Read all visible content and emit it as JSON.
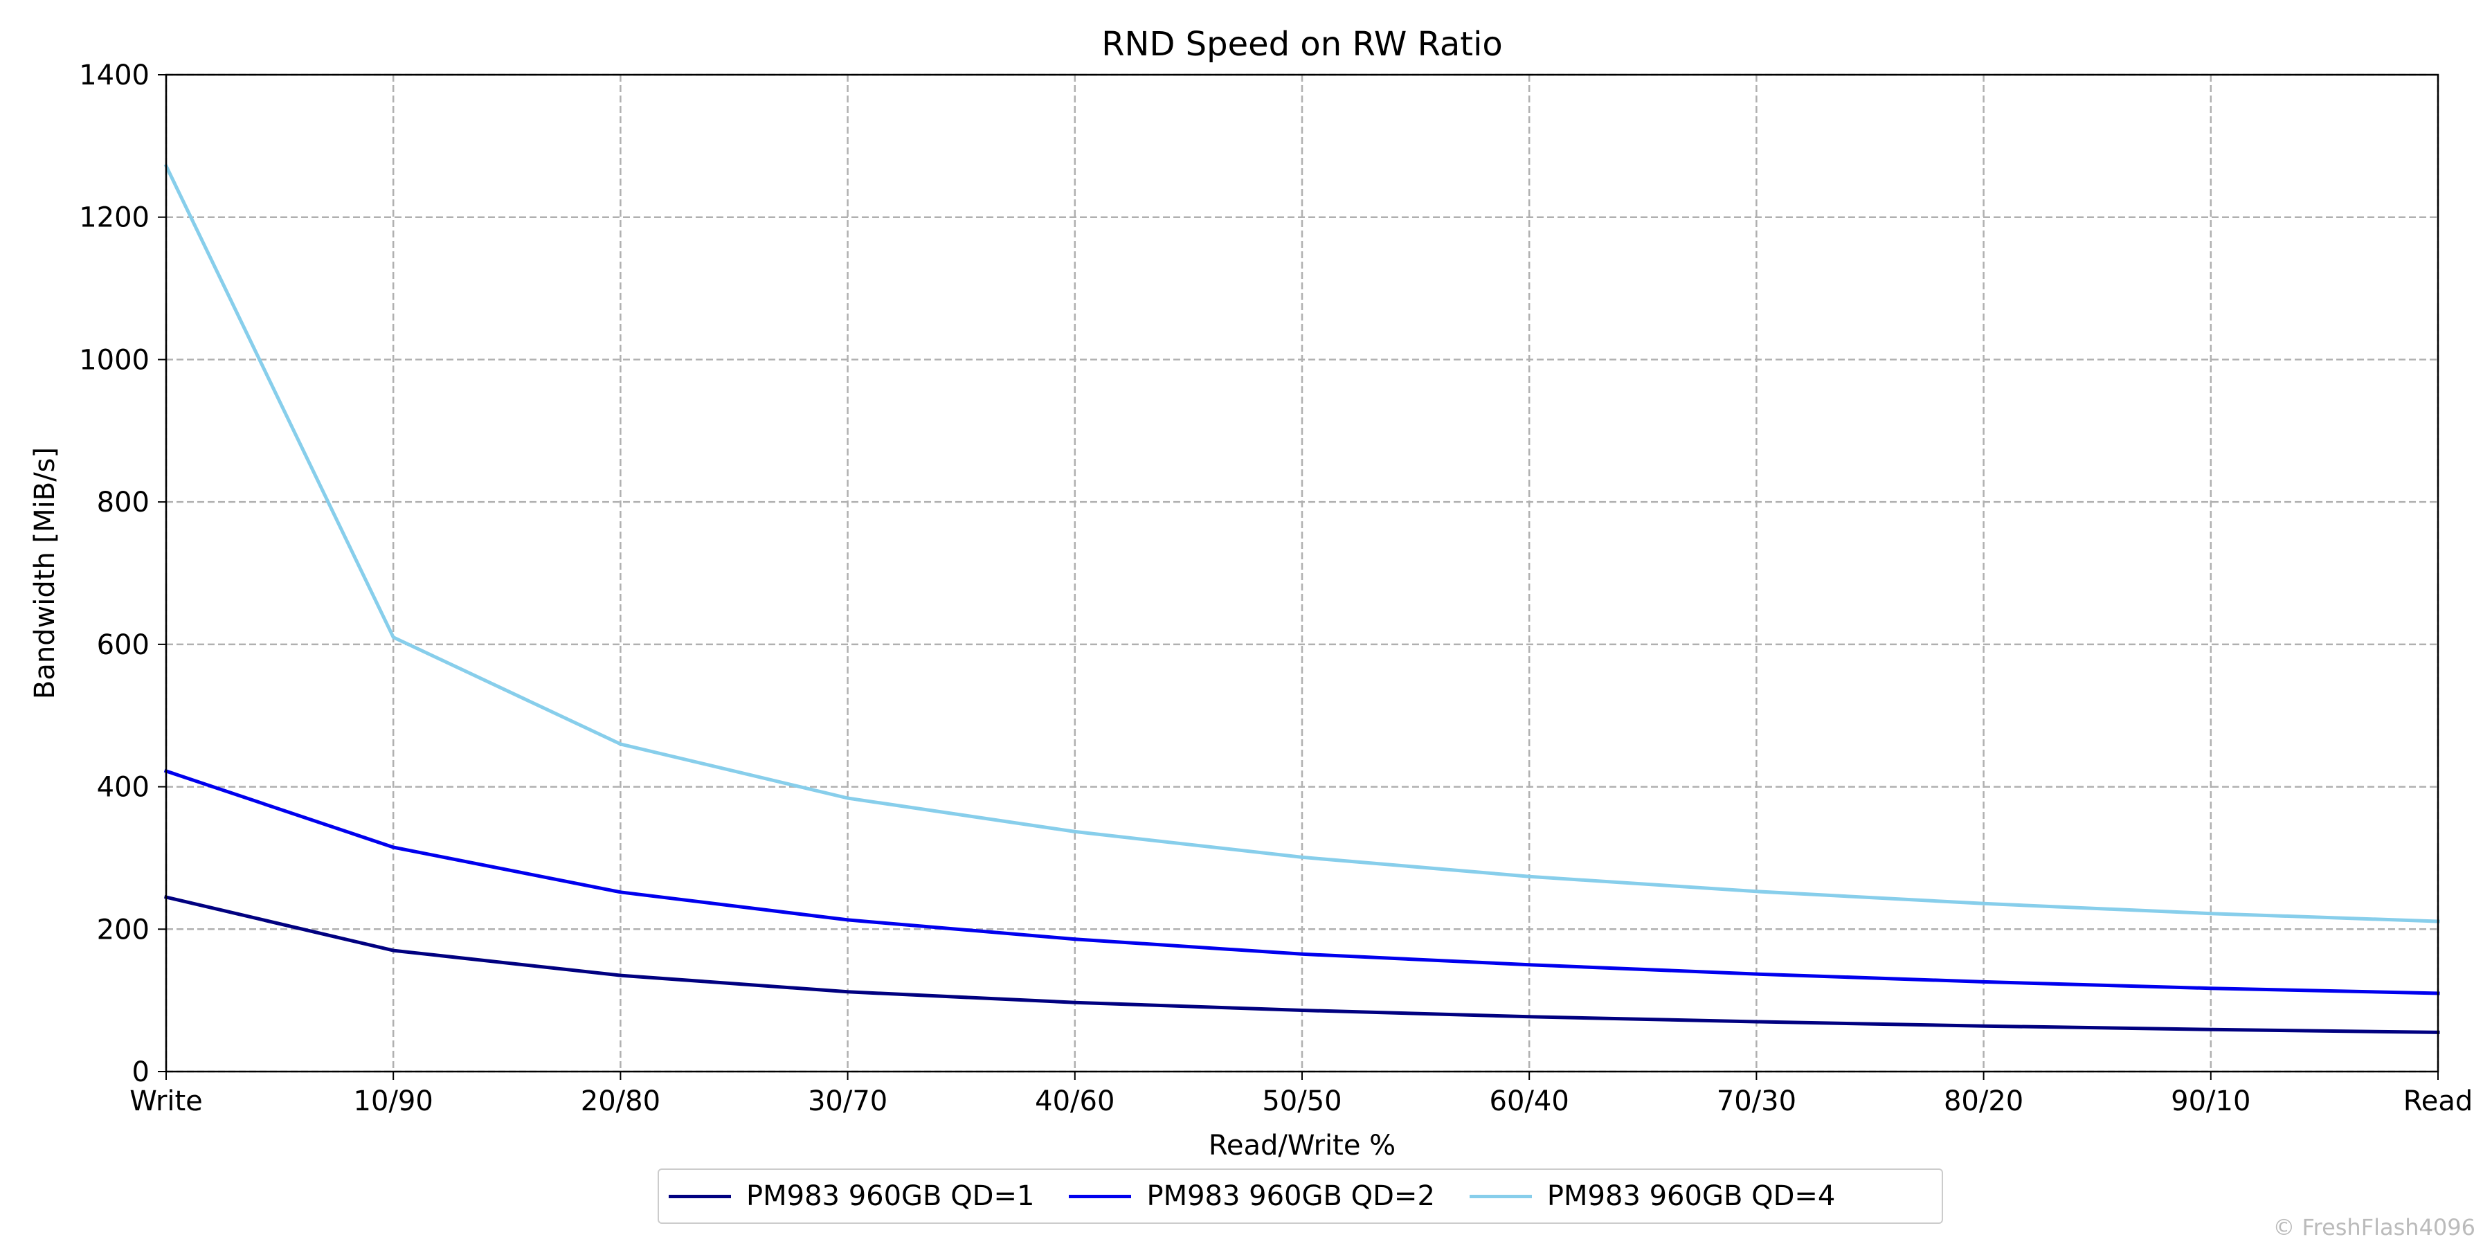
{
  "chart_data": {
    "type": "line",
    "title": "RND Speed on RW Ratio",
    "xlabel": "Read/Write %",
    "ylabel": "Bandwidth [MiB/s]",
    "categories": [
      "Write",
      "10/90",
      "20/80",
      "30/70",
      "40/60",
      "50/50",
      "60/40",
      "70/30",
      "80/20",
      "90/10",
      "Read"
    ],
    "ylim": [
      0,
      1400
    ],
    "yticks": [
      0,
      200,
      400,
      600,
      800,
      1000,
      1200,
      1400
    ],
    "grid": true,
    "legend_position": "bottom-center",
    "series": [
      {
        "name": "PM983 960GB QD=1",
        "color": "#000080",
        "values": [
          245,
          170,
          135,
          112,
          97,
          86,
          77,
          70,
          64,
          59,
          55
        ]
      },
      {
        "name": "PM983 960GB QD=2",
        "color": "#0000ee",
        "values": [
          422,
          315,
          252,
          213,
          186,
          165,
          150,
          137,
          126,
          117,
          110
        ]
      },
      {
        "name": "PM983 960GB QD=4",
        "color": "#87ceeb",
        "values": [
          1272,
          610,
          460,
          384,
          337,
          301,
          274,
          253,
          236,
          222,
          211
        ]
      }
    ]
  },
  "watermark": "© FreshFlash4096"
}
